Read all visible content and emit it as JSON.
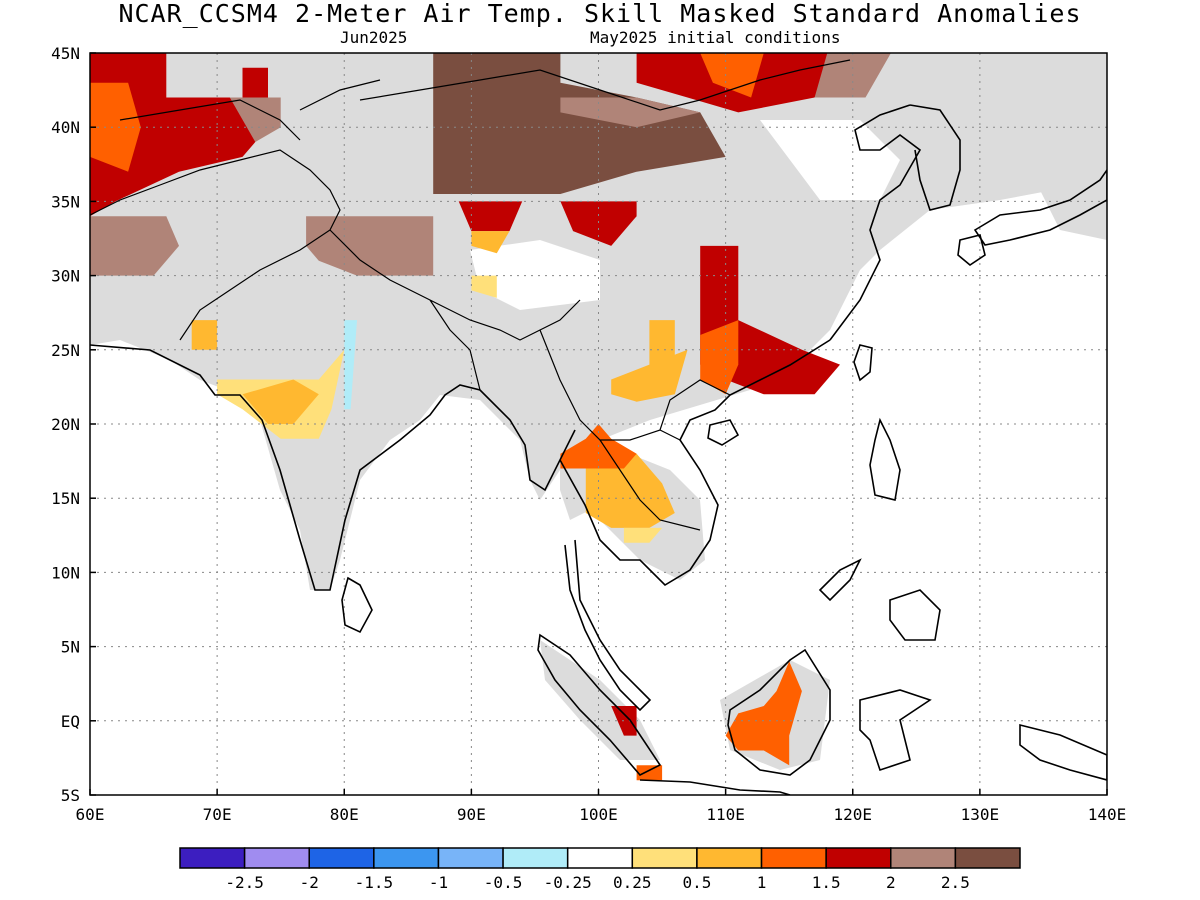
{
  "title": "NCAR_CCSM4 2-Meter Air Temp. Skill Masked Standard Anomalies",
  "subtitle_left": "Jun2025",
  "subtitle_right": "May2025 initial conditions",
  "map": {
    "lon_range": [
      60,
      140
    ],
    "lat_range": [
      -5,
      45
    ],
    "lat_labels": [
      {
        "lat": 45,
        "text": "45N"
      },
      {
        "lat": 40,
        "text": "40N"
      },
      {
        "lat": 35,
        "text": "35N"
      },
      {
        "lat": 30,
        "text": "30N"
      },
      {
        "lat": 25,
        "text": "25N"
      },
      {
        "lat": 20,
        "text": "20N"
      },
      {
        "lat": 15,
        "text": "15N"
      },
      {
        "lat": 10,
        "text": "10N"
      },
      {
        "lat": 5,
        "text": "5N"
      },
      {
        "lat": 0,
        "text": "EQ"
      },
      {
        "lat": -5,
        "text": "5S"
      }
    ],
    "lon_labels": [
      {
        "lon": 60,
        "text": "60E"
      },
      {
        "lon": 70,
        "text": "70E"
      },
      {
        "lon": 80,
        "text": "80E"
      },
      {
        "lon": 90,
        "text": "90E"
      },
      {
        "lon": 100,
        "text": "100E"
      },
      {
        "lon": 110,
        "text": "110E"
      },
      {
        "lon": 120,
        "text": "120E"
      },
      {
        "lon": 130,
        "text": "130E"
      },
      {
        "lon": 140,
        "text": "140E"
      }
    ],
    "grid": true,
    "masked_color": "#dcdcdc",
    "anomaly_regions": [
      {
        "name": "west-asia-warm",
        "color": "#c00000",
        "pts": [
          [
            60,
            45
          ],
          [
            66,
            45
          ],
          [
            66,
            42
          ],
          [
            72,
            42
          ],
          [
            72,
            44
          ],
          [
            74,
            44
          ],
          [
            74,
            40
          ],
          [
            72,
            38
          ],
          [
            67,
            37
          ],
          [
            62,
            35
          ],
          [
            60,
            34
          ]
        ]
      },
      {
        "name": "west-asia-moderate",
        "color": "#ff6000",
        "pts": [
          [
            60,
            43
          ],
          [
            63,
            43
          ],
          [
            64,
            40
          ],
          [
            63,
            37
          ],
          [
            60,
            38
          ]
        ]
      },
      {
        "name": "iran-brown",
        "color": "#b08478",
        "pts": [
          [
            60,
            34
          ],
          [
            66,
            34
          ],
          [
            67,
            32
          ],
          [
            65,
            30
          ],
          [
            60,
            30
          ]
        ]
      },
      {
        "name": "afghan-brown",
        "color": "#b08478",
        "pts": [
          [
            71,
            42
          ],
          [
            75,
            42
          ],
          [
            75,
            40
          ],
          [
            73,
            39
          ]
        ]
      },
      {
        "name": "tarim-brown",
        "color": "#b08478",
        "pts": [
          [
            77,
            34
          ],
          [
            87,
            34
          ],
          [
            87,
            30
          ],
          [
            81,
            30
          ],
          [
            78,
            31
          ],
          [
            77,
            32
          ]
        ]
      },
      {
        "name": "mongolia-dark",
        "color": "#7a4e40",
        "pts": [
          [
            87,
            45
          ],
          [
            97,
            45
          ],
          [
            97,
            43
          ],
          [
            103,
            42
          ],
          [
            108,
            41
          ],
          [
            110,
            38
          ],
          [
            103,
            37
          ],
          [
            97,
            35.5
          ],
          [
            87,
            35.5
          ]
        ]
      },
      {
        "name": "mongolia-light",
        "color": "#b08478",
        "pts": [
          [
            97,
            42
          ],
          [
            103,
            42
          ],
          [
            108,
            41
          ],
          [
            103,
            40
          ],
          [
            97,
            41
          ]
        ]
      },
      {
        "name": "north-china-warm",
        "color": "#c00000",
        "pts": [
          [
            103,
            45
          ],
          [
            120,
            45
          ],
          [
            117,
            42
          ],
          [
            111,
            41
          ],
          [
            107,
            42
          ],
          [
            103,
            43
          ]
        ]
      },
      {
        "name": "north-china-moderate",
        "color": "#ff6000",
        "pts": [
          [
            108,
            45
          ],
          [
            113,
            45
          ],
          [
            112,
            42
          ],
          [
            109,
            43
          ]
        ]
      },
      {
        "name": "manchuria-brown",
        "color": "#b08478",
        "pts": [
          [
            118,
            45
          ],
          [
            123,
            45
          ],
          [
            121,
            42
          ],
          [
            117,
            42
          ]
        ]
      },
      {
        "name": "qinghai-warm",
        "color": "#c00000",
        "pts": [
          [
            89,
            35
          ],
          [
            94,
            35
          ],
          [
            93,
            33
          ],
          [
            90,
            33
          ]
        ]
      },
      {
        "name": "qinghai-moderate",
        "color": "#ffb830",
        "pts": [
          [
            90,
            33
          ],
          [
            93,
            33
          ],
          [
            92,
            31.5
          ],
          [
            90,
            32
          ]
        ]
      },
      {
        "name": "tibet-warm",
        "color": "#c00000",
        "pts": [
          [
            97,
            35
          ],
          [
            103,
            35
          ],
          [
            103,
            34
          ],
          [
            101,
            32
          ],
          [
            98,
            33
          ]
        ]
      },
      {
        "name": "south-china-warm",
        "color": "#c00000",
        "pts": [
          [
            108,
            32
          ],
          [
            111,
            32
          ],
          [
            111,
            27
          ],
          [
            116,
            25
          ],
          [
            119,
            24
          ],
          [
            117,
            22
          ],
          [
            113,
            22
          ],
          [
            110,
            23
          ],
          [
            108,
            24
          ]
        ]
      },
      {
        "name": "south-china-moderate",
        "color": "#ff6000",
        "pts": [
          [
            108,
            26
          ],
          [
            111,
            27
          ],
          [
            111,
            24
          ],
          [
            110,
            22
          ],
          [
            108,
            23
          ]
        ]
      },
      {
        "name": "guangxi-light",
        "color": "#ffb830",
        "pts": [
          [
            101,
            23
          ],
          [
            104,
            24
          ],
          [
            107,
            25
          ],
          [
            106,
            22
          ],
          [
            103,
            21.5
          ],
          [
            101,
            22
          ]
        ]
      },
      {
        "name": "yunnan-light",
        "color": "#ffb830",
        "pts": [
          [
            104,
            27
          ],
          [
            106,
            27
          ],
          [
            106,
            24
          ],
          [
            104,
            24
          ]
        ]
      },
      {
        "name": "india-light",
        "color": "#ffe07a",
        "pts": [
          [
            70,
            23
          ],
          [
            78,
            23
          ],
          [
            80,
            25
          ],
          [
            79,
            21
          ],
          [
            78,
            19
          ],
          [
            75,
            19
          ],
          [
            72,
            21
          ],
          [
            70,
            22
          ]
        ]
      },
      {
        "name": "india-moderate",
        "color": "#ffb830",
        "pts": [
          [
            72,
            22
          ],
          [
            76,
            23
          ],
          [
            78,
            22
          ],
          [
            76,
            20
          ],
          [
            74,
            20
          ]
        ]
      },
      {
        "name": "rajasthan-light",
        "color": "#ffb830",
        "pts": [
          [
            68,
            27
          ],
          [
            70,
            27
          ],
          [
            70,
            25
          ],
          [
            68,
            25
          ]
        ]
      },
      {
        "name": "tibet-light",
        "color": "#ffe07a",
        "pts": [
          [
            90,
            30
          ],
          [
            92,
            30
          ],
          [
            92,
            28.5
          ],
          [
            90,
            29
          ]
        ]
      },
      {
        "name": "ganges-cool",
        "color": "#b0ecf8",
        "pts": [
          [
            80,
            27
          ],
          [
            81,
            27
          ],
          [
            80.5,
            21
          ],
          [
            80,
            21
          ]
        ]
      },
      {
        "name": "indochina-light",
        "color": "#ffb830",
        "pts": [
          [
            99,
            18
          ],
          [
            103,
            18
          ],
          [
            105,
            16
          ],
          [
            106,
            14
          ],
          [
            104,
            13
          ],
          [
            101,
            13
          ],
          [
            99,
            14
          ]
        ]
      },
      {
        "name": "indochina-moderate",
        "color": "#ff6000",
        "pts": [
          [
            97,
            18
          ],
          [
            99,
            19
          ],
          [
            100,
            20
          ],
          [
            101,
            19
          ],
          [
            103,
            18
          ],
          [
            102,
            17
          ],
          [
            99,
            17
          ],
          [
            97,
            17
          ]
        ]
      },
      {
        "name": "borneo-moderate",
        "color": "#ff6000",
        "pts": [
          [
            111,
            0.5
          ],
          [
            113,
            1
          ],
          [
            114,
            2
          ],
          [
            115,
            4
          ],
          [
            116,
            2
          ],
          [
            115,
            -1
          ],
          [
            115,
            -3
          ],
          [
            113,
            -2
          ],
          [
            111,
            -2
          ],
          [
            110,
            -1
          ]
        ]
      },
      {
        "name": "sumatra-warm",
        "color": "#c00000",
        "pts": [
          [
            101,
            1
          ],
          [
            103,
            1
          ],
          [
            103,
            -1
          ],
          [
            102,
            -1
          ]
        ]
      },
      {
        "name": "java-moderate",
        "color": "#ff6000",
        "pts": [
          [
            103,
            -3
          ],
          [
            105,
            -3
          ],
          [
            105,
            -4
          ],
          [
            103,
            -4
          ]
        ]
      },
      {
        "name": "mekong-light",
        "color": "#ffe07a",
        "pts": [
          [
            102,
            13
          ],
          [
            105,
            13
          ],
          [
            104,
            12
          ],
          [
            102,
            12
          ]
        ]
      }
    ]
  },
  "colorbar": {
    "colors": [
      "#3c1ec0",
      "#a08cf0",
      "#1e64e6",
      "#3c96f0",
      "#78b4f8",
      "#b0ecf8",
      "#ffffff",
      "#ffe07a",
      "#ffb830",
      "#ff6000",
      "#c00000",
      "#b08478",
      "#7a4e40"
    ],
    "labels": [
      "-2.5",
      "-2",
      "-1.5",
      "-1",
      "-0.5",
      "-0.25",
      "0.25",
      "0.5",
      "1",
      "1.5",
      "2",
      "2.5"
    ]
  }
}
